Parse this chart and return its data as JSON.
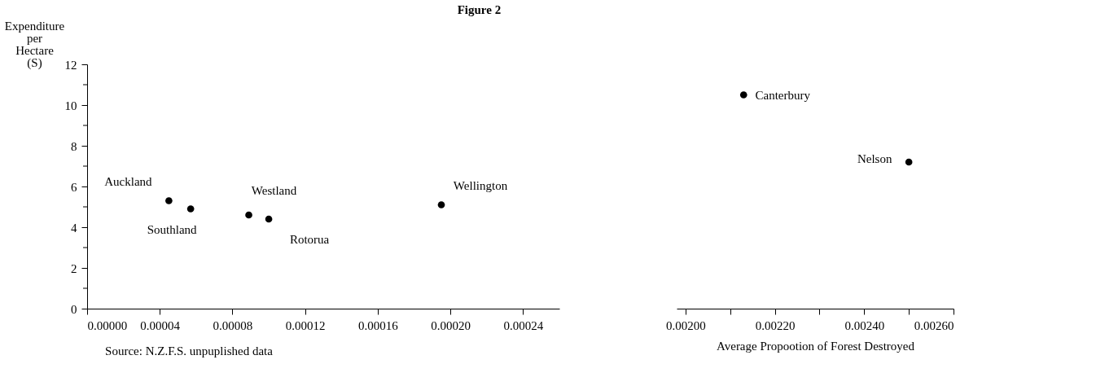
{
  "chart_data": [
    {
      "type": "scatter",
      "title": "Figure 2",
      "ylabel": "Expenditure per Hectare (S)",
      "x": [
        4.5e-05,
        5.7e-05,
        8.9e-05,
        0.0001,
        0.000195
      ],
      "values": [
        5.3,
        4.9,
        4.6,
        4.4,
        5.1
      ],
      "color": "#000000",
      "marker": "circle",
      "xlim": [
        0,
        0.00026
      ],
      "xticks": [
        {
          "value": 0,
          "label": "0.00000"
        },
        {
          "value": 4e-05,
          "label": "0.00004"
        },
        {
          "value": 8e-05,
          "label": "0.00008"
        },
        {
          "value": 0.00012,
          "label": "0.00012"
        },
        {
          "value": 0.00016,
          "label": "0.00016"
        },
        {
          "value": 0.0002,
          "label": "0.00020"
        },
        {
          "value": 0.00024,
          "label": "0.00024"
        }
      ],
      "ylim": [
        0,
        12
      ],
      "yticks": [
        0,
        {
          "value": 1,
          "label": null
        },
        2,
        {
          "value": 3,
          "label": null
        },
        4,
        {
          "value": 5,
          "label": null
        },
        6,
        {
          "value": 7,
          "label": null
        },
        8,
        {
          "value": 9,
          "label": null
        },
        10,
        {
          "value": 11,
          "label": null
        },
        12
      ],
      "annotations": [
        "Source: N.Z.F.S. unpuplished data",
        {
          "text": "Auckland",
          "x": 4.5e-05,
          "y": 5.3
        },
        {
          "text": "Southland",
          "x": 5.7e-05,
          "y": 4.9
        },
        {
          "text": "Westland",
          "x": 8.9e-05,
          "y": 4.6
        },
        {
          "text": "Rotorua",
          "x": 0.0001,
          "y": 4.4
        },
        {
          "text": "Wellington",
          "x": 0.000195,
          "y": 5.1
        }
      ]
    },
    {
      "type": "scatter",
      "xlabel": "Average Propootion of Forest Destroyed",
      "x": [
        0.00213,
        0.0025
      ],
      "values": [
        10.5,
        7.2
      ],
      "color": "#000000",
      "marker": "circle",
      "xlim": [
        0.00198,
        0.0026
      ],
      "xticks": [
        {
          "value": 0.002,
          "label": "0.00200"
        },
        {
          "value": 0.0021,
          "label": null
        },
        {
          "value": 0.0022,
          "label": "0.00220"
        },
        {
          "value": 0.0023,
          "label": null
        },
        {
          "value": 0.0024,
          "label": "0.00240"
        },
        {
          "value": 0.0025,
          "label": null
        },
        {
          "value": 0.0026,
          "label": "0.00260"
        }
      ],
      "ylim": [
        0,
        12
      ],
      "tick_labels": "x",
      "annotations": [
        {
          "text": "Canterbury",
          "x": 0.00213,
          "y": 10.5
        },
        {
          "text": "Nelson",
          "x": 0.0025,
          "y": 7.2
        }
      ]
    }
  ]
}
